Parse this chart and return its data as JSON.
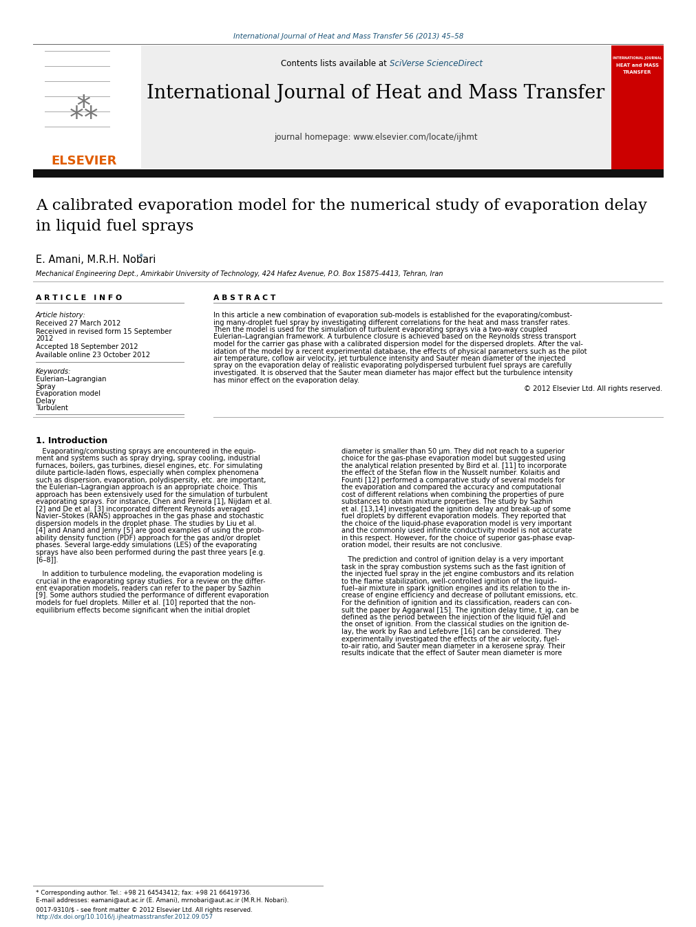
{
  "fig_width": 9.92,
  "fig_height": 13.23,
  "dpi": 100,
  "bg_color": "#ffffff",
  "journal_ref_text": "International Journal of Heat and Mass Transfer 56 (2013) 45–58",
  "journal_ref_color": "#1a5276",
  "journal_name": "International Journal of Heat and Mass Transfer",
  "contents_text": "Contents lists available at ",
  "sciverse_text": "SciVerse ScienceDirect",
  "homepage_text": "journal homepage: www.elsevier.com/locate/ijhmt",
  "elsevier_color": "#e05c00",
  "elsevier_text": "ELSEVIER",
  "header_bg": "#eeeeee",
  "article_title_line1": "A calibrated evaporation model for the numerical study of evaporation delay",
  "article_title_line2": "in liquid fuel sprays",
  "authors": "E. Amani, M.R.H. Nobari",
  "affiliation": "Mechanical Engineering Dept., Amirkabir University of Technology, 424 Hafez Avenue, P.O. Box 15875-4413, Tehran, Iran",
  "article_info_header": "A R T I C L E   I N F O",
  "abstract_header": "A B S T R A C T",
  "article_history_label": "Article history:",
  "received1": "Received 27 March 2012",
  "received2a": "Received in revised form 15 September",
  "received2b": "2012",
  "accepted": "Accepted 18 September 2012",
  "available": "Available online 23 October 2012",
  "keywords_label": "Keywords:",
  "keywords": [
    "Eulerian–Lagrangian",
    "Spray",
    "Evaporation model",
    "Delay",
    "Turbulent"
  ],
  "copyright_text": "© 2012 Elsevier Ltd. All rights reserved.",
  "intro_header": "1. Introduction",
  "abstract_lines": [
    "In this article a new combination of evaporation sub-models is established for the evaporating/combust-",
    "ing many-droplet fuel spray by investigating different correlations for the heat and mass transfer rates.",
    "Then the model is used for the simulation of turbulent evaporating sprays via a two-way coupled",
    "Eulerian–Lagrangian framework. A turbulence closure is achieved based on the Reynolds stress transport",
    "model for the carrier gas phase with a calibrated dispersion model for the dispersed droplets. After the val-",
    "idation of the model by a recent experimental database, the effects of physical parameters such as the pilot",
    "air temperature, coflow air velocity, jet turbulence intensity and Sauter mean diameter of the injected",
    "spray on the evaporation delay of realistic evaporating polydispersed turbulent fuel sprays are carefully",
    "investigated. It is observed that the Sauter mean diameter has major effect but the turbulence intensity",
    "has minor effect on the evaporation delay."
  ],
  "col1_lines": [
    "   Evaporating/combusting sprays are encountered in the equip-",
    "ment and systems such as spray drying, spray cooling, industrial",
    "furnaces, boilers, gas turbines, diesel engines, etc. For simulating",
    "dilute particle-laden flows, especially when complex phenomena",
    "such as dispersion, evaporation, polydispersity, etc. are important,",
    "the Eulerian–Lagrangian approach is an appropriate choice. This",
    "approach has been extensively used for the simulation of turbulent",
    "evaporating sprays. For instance, Chen and Pereira [1], Nijdam et al.",
    "[2] and De et al. [3] incorporated different Reynolds averaged",
    "Navier–Stokes (RANS) approaches in the gas phase and stochastic",
    "dispersion models in the droplet phase. The studies by Liu et al.",
    "[4] and Anand and Jenny [5] are good examples of using the prob-",
    "ability density function (PDF) approach for the gas and/or droplet",
    "phases. Several large-eddy simulations (LES) of the evaporating",
    "sprays have also been performed during the past three years [e.g.",
    "[6–8]].",
    "",
    "   In addition to turbulence modeling, the evaporation modeling is",
    "crucial in the evaporating spray studies. For a review on the differ-",
    "ent evaporation models, readers can refer to the paper by Sazhin",
    "[9]. Some authors studied the performance of different evaporation",
    "models for fuel droplets. Miller et al. [10] reported that the non-",
    "equilibrium effects become significant when the initial droplet"
  ],
  "col2_lines": [
    "diameter is smaller than 50 μm. They did not reach to a superior",
    "choice for the gas-phase evaporation model but suggested using",
    "the analytical relation presented by Bird et al. [11] to incorporate",
    "the effect of the Stefan flow in the Nusselt number. Kolaitis and",
    "Founti [12] performed a comparative study of several models for",
    "the evaporation and compared the accuracy and computational",
    "cost of different relations when combining the properties of pure",
    "substances to obtain mixture properties. The study by Sazhin",
    "et al. [13,14] investigated the ignition delay and break-up of some",
    "fuel droplets by different evaporation models. They reported that",
    "the choice of the liquid-phase evaporation model is very important",
    "and the commonly used infinite conductivity model is not accurate",
    "in this respect. However, for the choice of superior gas-phase evap-",
    "oration model, their results are not conclusive.",
    "",
    "   The prediction and control of ignition delay is a very important",
    "task in the spray combustion systems such as the fast ignition of",
    "the injected fuel spray in the jet engine combustors and its relation",
    "to the flame stabilization, well-controlled ignition of the liquid–",
    "fuel–air mixture in spark ignition engines and its relation to the in-",
    "crease of engine efficiency and decrease of pollutant emissions, etc.",
    "For the definition of ignition and its classification, readers can con-",
    "sult the paper by Aggarwal [15]. The ignition delay time, t_ig, can be",
    "defined as the period between the injection of the liquid fuel and",
    "the onset of ignition. From the classical studies on the ignition de-",
    "lay, the work by Rao and Lefebvre [16] can be considered. They",
    "experimentally investigated the effects of the air velocity, fuel-",
    "to-air ratio, and Sauter mean diameter in a kerosene spray. Their",
    "results indicate that the effect of Sauter mean diameter is more"
  ],
  "footer_text1": "* Corresponding author. Tel.: +98 21 64543412; fax: +98 21 66419736.",
  "footer_text2": "E-mail addresses: eamani@aut.ac.ir (E. Amani), mrnobari@aut.ac.ir (M.R.H. Nobari).",
  "footer_line1": "0017-9310/$ - see front matter © 2012 Elsevier Ltd. All rights reserved.",
  "footer_line2": "http://dx.doi.org/10.1016/j.ijheatmasstransfer.2012.09.057",
  "link_color": "#1a5276",
  "red_cover_color": "#cc0000",
  "dark_bar_color": "#111111",
  "rule_color": "#888888",
  "rule_color_light": "#aaaaaa"
}
